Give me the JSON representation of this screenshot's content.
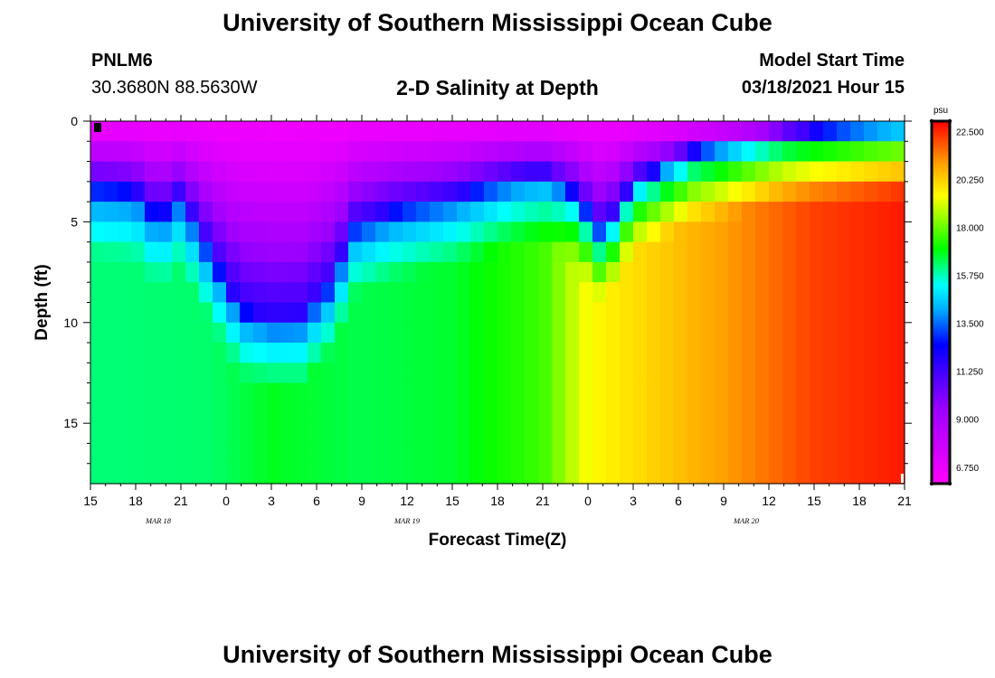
{
  "header": {
    "title": "University of Southern Mississippi Ocean Cube",
    "footer_title": "University of Southern Mississippi Ocean Cube",
    "station_id": "PNLM6",
    "station_coords": "30.3680N 88.5630W",
    "chart_title": "2-D Salinity at Depth",
    "model_start_label": "Model Start Time",
    "model_start_value": "03/18/2021 Hour 15"
  },
  "chart_data": {
    "type": "heatmap",
    "title": "2-D Salinity at Depth",
    "xlabel": "Forecast Time(Z)",
    "ylabel": "Depth (ft)",
    "x_tick_labels": [
      "15",
      "18",
      "21",
      "0",
      "3",
      "6",
      "9",
      "12",
      "15",
      "18",
      "21",
      "0",
      "3",
      "6",
      "9",
      "12",
      "15",
      "18",
      "21"
    ],
    "x_range_hours": [
      0,
      54
    ],
    "x_step_hours": 3,
    "date_labels": [
      {
        "text": "MAR 18",
        "hour": 4.5
      },
      {
        "text": "MAR 19",
        "hour": 21
      },
      {
        "text": "MAR 20",
        "hour": 43.5
      }
    ],
    "y_ticks": [
      0,
      5,
      10,
      15
    ],
    "y_range_ft": [
      0,
      18
    ],
    "colorbar": {
      "unit": "psu",
      "min": 6.0,
      "max": 23.0,
      "tick_values": [
        22.5,
        20.25,
        18.0,
        15.75,
        13.5,
        11.25,
        9.0,
        6.75
      ],
      "tick_labels": [
        "22.500",
        "20.250",
        "18.000",
        "15.750",
        "13.500",
        "11.250",
        "9.000",
        "6.750"
      ],
      "color_stops": [
        {
          "v": 6.0,
          "c": "#ff00ff"
        },
        {
          "v": 9.5,
          "c": "#9c00ff"
        },
        {
          "v": 12.5,
          "c": "#0000ff"
        },
        {
          "v": 14.2,
          "c": "#00b0ff"
        },
        {
          "v": 15.3,
          "c": "#00ffff"
        },
        {
          "v": 17.0,
          "c": "#00ff00"
        },
        {
          "v": 19.5,
          "c": "#ffff00"
        },
        {
          "v": 21.0,
          "c": "#ffa000"
        },
        {
          "v": 23.0,
          "c": "#ff0000"
        }
      ]
    },
    "heatmap_model": {
      "description": "salinity (psu) sampled on hour x depth grid; halocline depth z0(hour) and bottom salinity b(hour)",
      "surface_psu": 6.5,
      "n_time": 60,
      "n_depth": 18,
      "halocline_depth_ft": [
        {
          "h": 0,
          "v": 3.2
        },
        {
          "h": 3,
          "v": 3.4
        },
        {
          "h": 4.5,
          "v": 4.8
        },
        {
          "h": 6,
          "v": 3.6
        },
        {
          "h": 8,
          "v": 6.6
        },
        {
          "h": 10,
          "v": 9.3
        },
        {
          "h": 12,
          "v": 9.8
        },
        {
          "h": 14,
          "v": 9.7
        },
        {
          "h": 16,
          "v": 8.0
        },
        {
          "h": 17.5,
          "v": 5.2
        },
        {
          "h": 20,
          "v": 4.4
        },
        {
          "h": 24,
          "v": 3.7
        },
        {
          "h": 28,
          "v": 2.8
        },
        {
          "h": 30,
          "v": 2.6
        },
        {
          "h": 32,
          "v": 3.5
        },
        {
          "h": 34,
          "v": 5.6
        },
        {
          "h": 36,
          "v": 3.0
        },
        {
          "h": 40,
          "v": 1.5
        },
        {
          "h": 46,
          "v": 0.6
        },
        {
          "h": 54,
          "v": 0.2
        }
      ],
      "bottom_psu": [
        {
          "h": 0,
          "v": 16.2
        },
        {
          "h": 8,
          "v": 16.3
        },
        {
          "h": 12,
          "v": 16.8
        },
        {
          "h": 18,
          "v": 16.5
        },
        {
          "h": 24,
          "v": 16.7
        },
        {
          "h": 30,
          "v": 17.6
        },
        {
          "h": 33,
          "v": 19.5
        },
        {
          "h": 36,
          "v": 20.0
        },
        {
          "h": 42,
          "v": 21.0
        },
        {
          "h": 48,
          "v": 22.2
        },
        {
          "h": 54,
          "v": 22.7
        }
      ]
    }
  }
}
